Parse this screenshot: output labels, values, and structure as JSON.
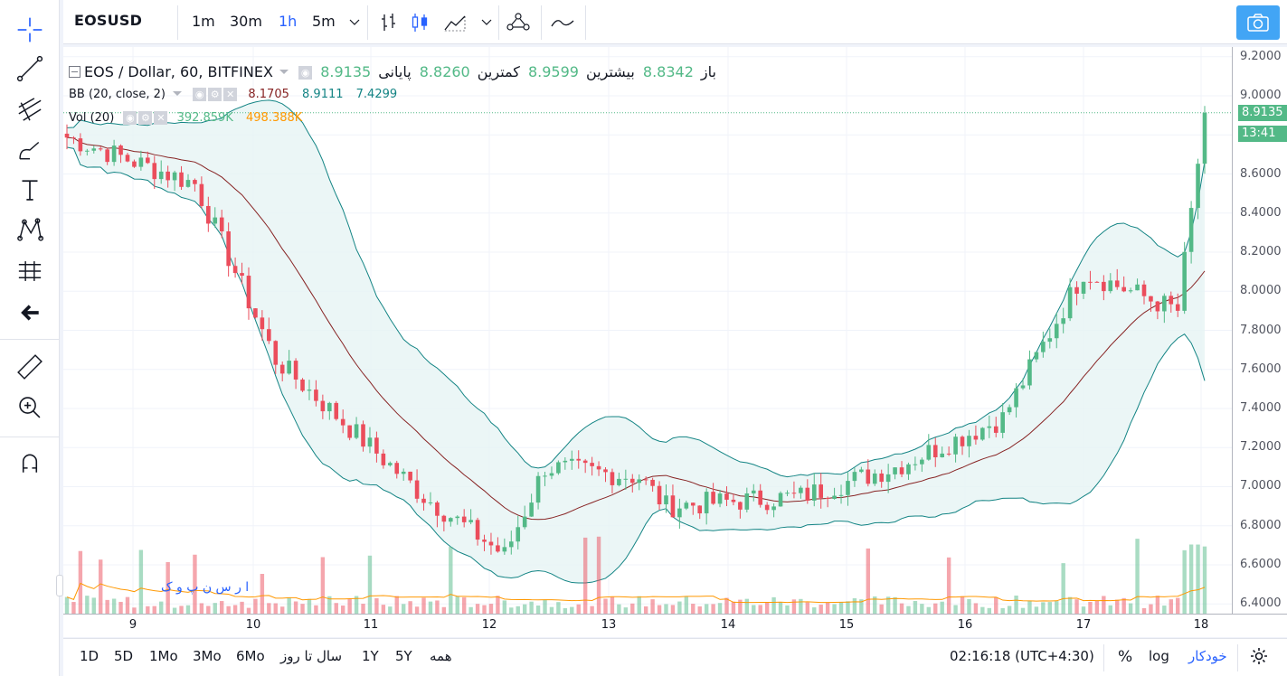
{
  "header": {
    "symbol": "EOSUSD",
    "intervals": [
      "1m",
      "30m",
      "1h",
      "5m"
    ],
    "active_interval": "1h"
  },
  "legend": {
    "title": "EOS / Dollar, 60, BITFINEX",
    "open_label": "باز",
    "open_value": "8.8342",
    "high_label": "بیشترین",
    "high_value": "8.9599",
    "low_label": "کمترین",
    "low_value": "8.8260",
    "close_label": "پایانی",
    "close_value": "8.9135",
    "bb_label": "BB (20, close, 2)",
    "bb_values": [
      "8.1705",
      "8.9111",
      "7.4299"
    ],
    "vol_label": "Vol (20)",
    "vol_values": [
      "392.859K",
      "498.388K"
    ]
  },
  "watermark": "ا ر س ن پ و ک",
  "price_axis": {
    "ticks": [
      "9.2000",
      "9.0000",
      "8.8000",
      "8.6000",
      "8.4000",
      "8.2000",
      "8.0000",
      "7.8000",
      "7.6000",
      "7.4000",
      "7.2000",
      "7.0000",
      "6.8000",
      "6.6000",
      "6.4000"
    ],
    "last_price": "8.9135",
    "countdown": "13:41"
  },
  "time_axis": {
    "ticks": [
      "9",
      "10",
      "11",
      "12",
      "13",
      "14",
      "15",
      "16",
      "17",
      "18"
    ]
  },
  "bottom_bar": {
    "ranges": [
      "1D",
      "5D",
      "1Mo",
      "3Mo",
      "6Mo",
      "سال تا روز",
      "1Y",
      "5Y",
      "همه"
    ],
    "clock": "02:16:18 (UTC+4:30)",
    "percent": "%",
    "log": "log",
    "auto": "خودکار"
  },
  "chart_data": {
    "type": "candlestick",
    "symbol": "EOSUSD",
    "ylim": [
      6.35,
      9.25
    ],
    "x_ticks": [
      "9",
      "10",
      "11",
      "12",
      "13",
      "14",
      "15",
      "16",
      "17",
      "18"
    ],
    "last_close": 8.9135,
    "colors": {
      "up": "#53b987",
      "down": "#eb4d5c",
      "bb_basis": "#872323",
      "bb_band": "#138484",
      "bb_fill": "#e6f4f4",
      "vol_ma": "#ff9800"
    },
    "segments": [
      {
        "bars": 20,
        "from": 8.8,
        "to": 8.55
      },
      {
        "bars": 12,
        "from": 8.55,
        "to": 7.65
      },
      {
        "bars": 22,
        "from": 7.65,
        "to": 6.95
      },
      {
        "bars": 12,
        "from": 6.95,
        "to": 6.65
      },
      {
        "bars": 6,
        "from": 6.65,
        "to": 7.1
      },
      {
        "bars": 14,
        "from": 7.1,
        "to": 7.05
      },
      {
        "bars": 4,
        "from": 7.05,
        "to": 6.9
      },
      {
        "bars": 20,
        "from": 6.9,
        "to": 6.95
      },
      {
        "bars": 14,
        "from": 6.95,
        "to": 7.1
      },
      {
        "bars": 16,
        "from": 7.1,
        "to": 7.35
      },
      {
        "bars": 12,
        "from": 7.35,
        "to": 8.1
      },
      {
        "bars": 14,
        "from": 8.1,
        "to": 7.9
      },
      {
        "bars": 4,
        "from": 7.9,
        "to": 8.91
      }
    ]
  }
}
